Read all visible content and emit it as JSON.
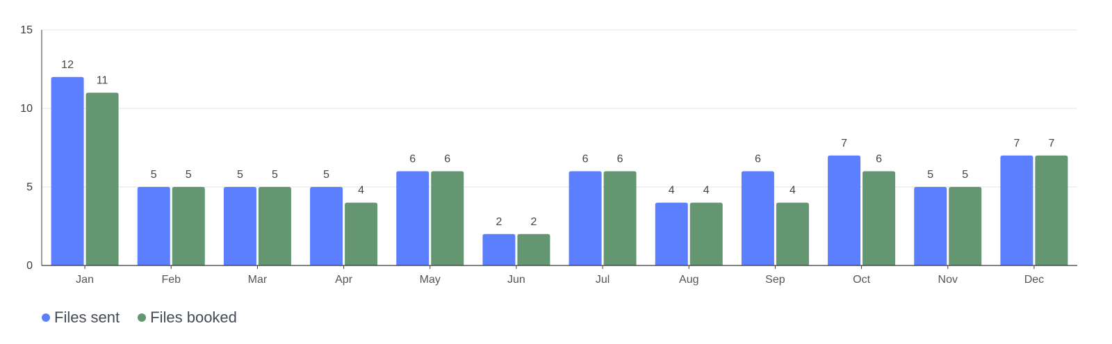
{
  "chart_data": {
    "type": "bar",
    "categories": [
      "Jan",
      "Feb",
      "Mar",
      "Apr",
      "May",
      "Jun",
      "Jul",
      "Aug",
      "Sep",
      "Oct",
      "Nov",
      "Dec"
    ],
    "series": [
      {
        "name": "Files sent",
        "color": "#5b7fff",
        "values": [
          12,
          5,
          5,
          5,
          6,
          2,
          6,
          4,
          6,
          7,
          5,
          7
        ]
      },
      {
        "name": "Files booked",
        "color": "#659672",
        "values": [
          11,
          5,
          5,
          4,
          6,
          2,
          6,
          4,
          4,
          6,
          5,
          7
        ]
      }
    ],
    "yticks": [
      0,
      5,
      10,
      15
    ],
    "ylim": [
      0,
      15
    ],
    "grid": true,
    "legend_position": "bottom-left",
    "title": "",
    "xlabel": "",
    "ylabel": ""
  }
}
